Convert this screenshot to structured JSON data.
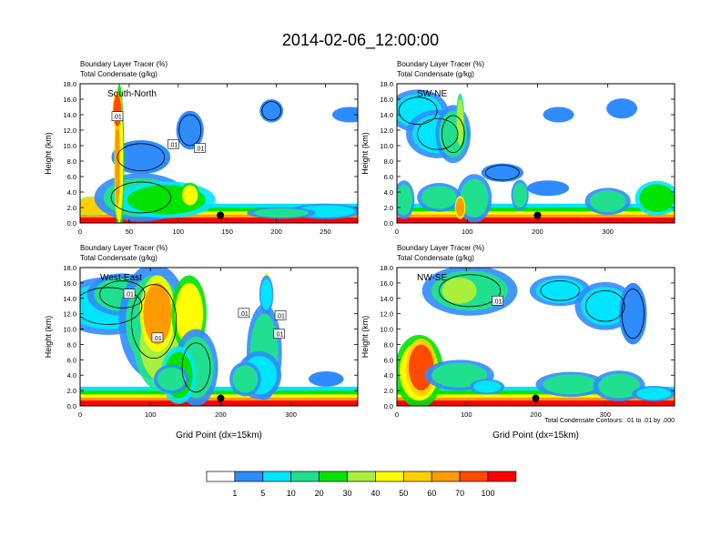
{
  "chart_data": {
    "type": "heatmap",
    "title": "2014-02-06_12:00:00",
    "panels": [
      {
        "name": "South-North",
        "label_left_1": "Boundary Layer Tracer   (%)",
        "label_left_2": "Total Condensate   (g/kg)",
        "ylabel": "Height (km)",
        "xlabel": "",
        "xlim": [
          0,
          283
        ],
        "ylim": [
          0,
          18
        ],
        "xticks": [
          0,
          50,
          100,
          150,
          200,
          250
        ],
        "yticks": [
          0,
          2,
          4,
          6,
          8,
          10,
          12,
          14,
          16,
          18
        ],
        "ytick_labels": [
          "0.0",
          "2.0",
          "4.0",
          "6.0",
          "8.0",
          "10.0",
          "12.0",
          "14.0",
          "16.0",
          "18.0"
        ],
        "contour_labels": [
          ".01",
          ".01",
          ".01"
        ],
        "marker": {
          "x": 143,
          "y": 1.0
        }
      },
      {
        "name": "SW-NE",
        "label_left_1": "Boundary Layer Tracer   (%)",
        "label_left_2": "Total Condensate   (g/kg)",
        "ylabel": "Height (km)",
        "xlabel": "",
        "xlim": [
          0,
          395
        ],
        "ylim": [
          0,
          18
        ],
        "xticks": [
          0,
          100,
          200,
          300
        ],
        "yticks": [
          0,
          2,
          4,
          6,
          8,
          10,
          12,
          14,
          16,
          18
        ],
        "ytick_labels": [
          "0.0",
          "2.0",
          "4.0",
          "6.0",
          "8.0",
          "10.0",
          "12.0",
          "14.0",
          "16.0",
          "18.0"
        ],
        "contour_labels": [],
        "marker": {
          "x": 200,
          "y": 1.0
        }
      },
      {
        "name": "West-East",
        "label_left_1": "Boundary Layer Tracer   (%)",
        "label_left_2": "Total Condensate   (g/kg)",
        "ylabel": "Height (km)",
        "xlabel": "Grid Point (dx=15km)",
        "xlim": [
          0,
          395
        ],
        "ylim": [
          0,
          18
        ],
        "xticks": [
          0,
          100,
          200,
          300
        ],
        "yticks": [
          0,
          2,
          4,
          6,
          8,
          10,
          12,
          14,
          16,
          18
        ],
        "ytick_labels": [
          "0.0",
          "2.0",
          "4.0",
          "6.0",
          "8.0",
          "10.0",
          "12.0",
          "14.0",
          "16.0",
          "18.0"
        ],
        "contour_labels": [
          ".01",
          ".01",
          ".01",
          ".01",
          ".01"
        ],
        "marker": {
          "x": 200,
          "y": 1.0
        }
      },
      {
        "name": "NW-SE",
        "label_left_1": "Boundary Layer Tracer   (%)",
        "label_left_2": "Total Condensate   (g/kg)",
        "ylabel": "Height (km)",
        "xlabel": "Grid Point (dx=15km)",
        "xlim": [
          0,
          400
        ],
        "ylim": [
          0,
          18
        ],
        "xticks": [
          0,
          100,
          200,
          300
        ],
        "yticks": [
          0,
          2,
          4,
          6,
          8,
          10,
          12,
          14,
          16,
          18
        ],
        "ytick_labels": [
          "0.0",
          "2.0",
          "4.0",
          "6.0",
          "8.0",
          "10.0",
          "12.0",
          "14.0",
          "16.0",
          "18.0"
        ],
        "contour_labels": [
          ".01"
        ],
        "marker": {
          "x": 200,
          "y": 1.0
        },
        "note": "Total Condensate Contours: .01 to .01 by .000"
      }
    ],
    "colorbar": {
      "levels": [
        "1",
        "5",
        "10",
        "20",
        "30",
        "40",
        "50",
        "60",
        "70",
        "100"
      ],
      "colors": [
        "#ffffff",
        "#2f8cff",
        "#00e5ff",
        "#20e090",
        "#00e400",
        "#a8f03c",
        "#ffff00",
        "#ffce00",
        "#ff9a00",
        "#ff4a00",
        "#ff0000"
      ]
    }
  }
}
